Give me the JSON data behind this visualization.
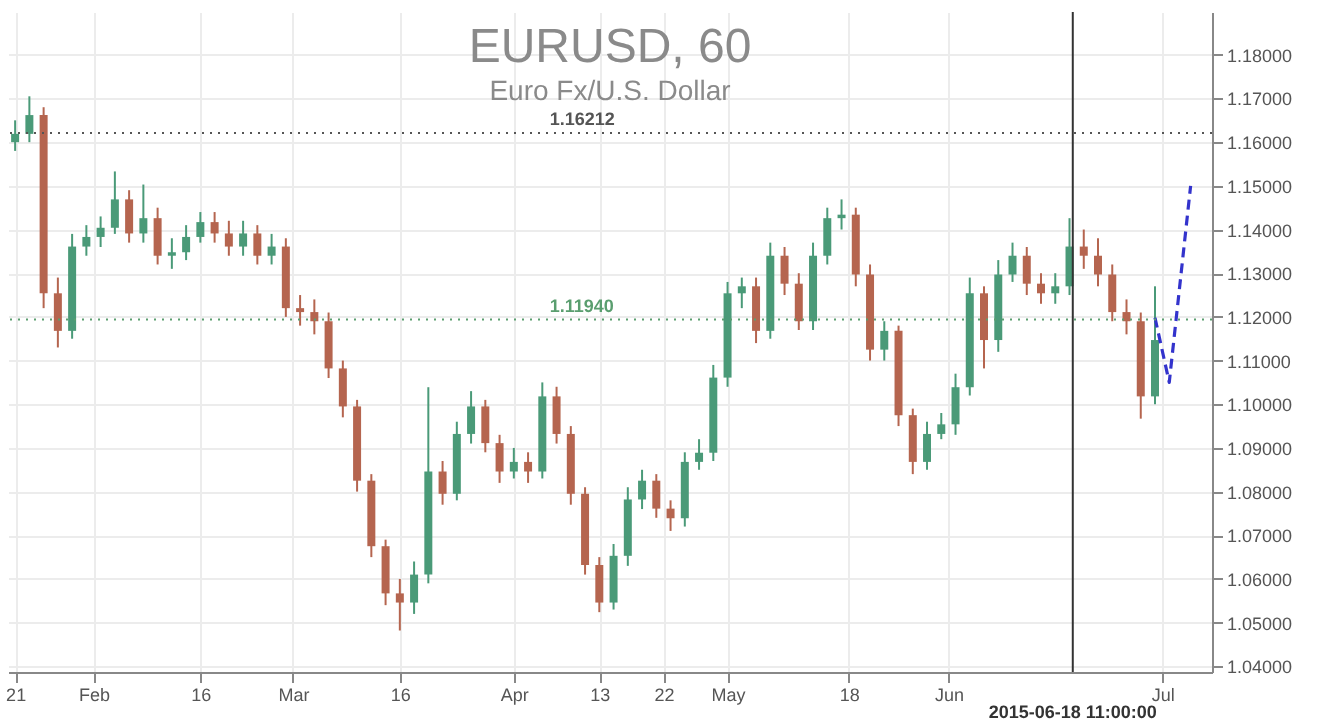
{
  "chart_data": {
    "type": "candlestick",
    "title": "EURUSD, 60",
    "subtitle": "Euro Fx/U.S. Dollar",
    "x": [
      "2015-01-21",
      "2015-01-23",
      "2015-01-25",
      "2015-01-27",
      "2015-01-29",
      "2015-01-31",
      "2015-02-02",
      "2015-02-04",
      "2015-02-06",
      "2015-02-08",
      "2015-02-10",
      "2015-02-12",
      "2015-02-14",
      "2015-02-16",
      "2015-02-18",
      "2015-02-20",
      "2015-02-22",
      "2015-02-24",
      "2015-02-26",
      "2015-02-28",
      "2015-03-02",
      "2015-03-04",
      "2015-03-06",
      "2015-03-08",
      "2015-03-10",
      "2015-03-12",
      "2015-03-14",
      "2015-03-16",
      "2015-03-18",
      "2015-03-20",
      "2015-03-22",
      "2015-03-24",
      "2015-03-26",
      "2015-03-28",
      "2015-03-30",
      "2015-04-01",
      "2015-04-03",
      "2015-04-05",
      "2015-04-07",
      "2015-04-09",
      "2015-04-11",
      "2015-04-13",
      "2015-04-15",
      "2015-04-17",
      "2015-04-19",
      "2015-04-21",
      "2015-04-23",
      "2015-04-25",
      "2015-04-27",
      "2015-04-29",
      "2015-05-01",
      "2015-05-03",
      "2015-05-05",
      "2015-05-07",
      "2015-05-09",
      "2015-05-11",
      "2015-05-13",
      "2015-05-15",
      "2015-05-17",
      "2015-05-19",
      "2015-05-21",
      "2015-05-23",
      "2015-05-25",
      "2015-05-27",
      "2015-05-29",
      "2015-05-31",
      "2015-06-02",
      "2015-06-04",
      "2015-06-06",
      "2015-06-08",
      "2015-06-10",
      "2015-06-12",
      "2015-06-14",
      "2015-06-16",
      "2015-06-18",
      "2015-06-20",
      "2015-06-22",
      "2015-06-24",
      "2015-06-26",
      "2015-06-28",
      "2015-06-30"
    ],
    "ohlc": [
      [
        1.16,
        1.165,
        1.158,
        1.1619
      ],
      [
        1.1619,
        1.1705,
        1.16,
        1.1662
      ],
      [
        1.1662,
        1.168,
        1.122,
        1.1254
      ],
      [
        1.1254,
        1.129,
        1.113,
        1.1168
      ],
      [
        1.1168,
        1.139,
        1.115,
        1.1361
      ],
      [
        1.1361,
        1.141,
        1.134,
        1.1383
      ],
      [
        1.1383,
        1.143,
        1.136,
        1.1404
      ],
      [
        1.1404,
        1.1533,
        1.139,
        1.1469
      ],
      [
        1.1469,
        1.149,
        1.137,
        1.1391
      ],
      [
        1.1391,
        1.1503,
        1.137,
        1.1426
      ],
      [
        1.1426,
        1.145,
        1.132,
        1.134
      ],
      [
        1.134,
        1.138,
        1.131,
        1.1348
      ],
      [
        1.1348,
        1.141,
        1.133,
        1.1383
      ],
      [
        1.1383,
        1.144,
        1.137,
        1.1417
      ],
      [
        1.1417,
        1.144,
        1.137,
        1.1391
      ],
      [
        1.1391,
        1.142,
        1.134,
        1.1361
      ],
      [
        1.1361,
        1.142,
        1.134,
        1.1391
      ],
      [
        1.1391,
        1.141,
        1.132,
        1.134
      ],
      [
        1.134,
        1.139,
        1.132,
        1.1361
      ],
      [
        1.1361,
        1.138,
        1.12,
        1.122
      ],
      [
        1.122,
        1.125,
        1.118,
        1.1211
      ],
      [
        1.1211,
        1.124,
        1.116,
        1.119
      ],
      [
        1.119,
        1.121,
        1.106,
        1.1082
      ],
      [
        1.1082,
        1.11,
        1.097,
        1.0995
      ],
      [
        1.0995,
        1.101,
        1.08,
        1.0825
      ],
      [
        1.0825,
        1.084,
        1.065,
        1.0675
      ],
      [
        1.0675,
        1.069,
        1.054,
        1.0567
      ],
      [
        1.0567,
        1.06,
        1.0482,
        1.0546
      ],
      [
        1.0546,
        1.064,
        1.052,
        1.061
      ],
      [
        1.061,
        1.1039,
        1.059,
        1.0846
      ],
      [
        1.0846,
        1.087,
        1.077,
        1.0795
      ],
      [
        1.0795,
        1.096,
        1.078,
        1.0932
      ],
      [
        1.0932,
        1.103,
        1.091,
        1.0995
      ],
      [
        1.0995,
        1.101,
        1.089,
        1.0911
      ],
      [
        1.0911,
        1.093,
        1.082,
        1.0846
      ],
      [
        1.0846,
        1.09,
        1.083,
        1.0868
      ],
      [
        1.0868,
        1.089,
        1.082,
        1.0846
      ],
      [
        1.0846,
        1.105,
        1.083,
        1.1018
      ],
      [
        1.1018,
        1.104,
        1.091,
        1.0932
      ],
      [
        1.0932,
        1.095,
        1.077,
        1.0795
      ],
      [
        1.0795,
        1.081,
        1.061,
        1.0632
      ],
      [
        1.0632,
        1.065,
        1.0524,
        1.0546
      ],
      [
        1.0546,
        1.068,
        1.053,
        1.0653
      ],
      [
        1.0653,
        1.081,
        1.063,
        1.0782
      ],
      [
        1.0782,
        1.085,
        1.076,
        1.0825
      ],
      [
        1.0825,
        1.084,
        1.074,
        1.0761
      ],
      [
        1.0761,
        1.078,
        1.071,
        1.0739
      ],
      [
        1.0739,
        1.089,
        1.072,
        1.0868
      ],
      [
        1.0868,
        1.092,
        1.085,
        1.0889
      ],
      [
        1.0889,
        1.109,
        1.087,
        1.1061
      ],
      [
        1.1061,
        1.128,
        1.104,
        1.1254
      ],
      [
        1.1254,
        1.129,
        1.122,
        1.127
      ],
      [
        1.127,
        1.129,
        1.114,
        1.1168
      ],
      [
        1.1168,
        1.137,
        1.115,
        1.134
      ],
      [
        1.134,
        1.136,
        1.125,
        1.1276
      ],
      [
        1.1276,
        1.13,
        1.117,
        1.119
      ],
      [
        1.119,
        1.137,
        1.117,
        1.134
      ],
      [
        1.134,
        1.145,
        1.132,
        1.1426
      ],
      [
        1.1426,
        1.1469,
        1.14,
        1.1434
      ],
      [
        1.1434,
        1.145,
        1.127,
        1.1297
      ],
      [
        1.1297,
        1.132,
        1.11,
        1.1125
      ],
      [
        1.1125,
        1.119,
        1.11,
        1.1168
      ],
      [
        1.1168,
        1.118,
        1.095,
        1.0975
      ],
      [
        1.0975,
        1.099,
        1.084,
        1.0868
      ],
      [
        1.0868,
        1.096,
        1.085,
        1.0932
      ],
      [
        1.0932,
        1.098,
        1.092,
        1.0954
      ],
      [
        1.0954,
        1.107,
        1.093,
        1.1039
      ],
      [
        1.1039,
        1.129,
        1.102,
        1.1254
      ],
      [
        1.1254,
        1.127,
        1.1082,
        1.1147
      ],
      [
        1.1147,
        1.133,
        1.112,
        1.1297
      ],
      [
        1.1297,
        1.137,
        1.128,
        1.134
      ],
      [
        1.134,
        1.136,
        1.125,
        1.1276
      ],
      [
        1.1276,
        1.13,
        1.123,
        1.1254
      ],
      [
        1.1254,
        1.13,
        1.123,
        1.127
      ],
      [
        1.127,
        1.1426,
        1.125,
        1.1361
      ],
      [
        1.1361,
        1.14,
        1.131,
        1.134
      ],
      [
        1.134,
        1.138,
        1.127,
        1.1297
      ],
      [
        1.1297,
        1.132,
        1.119,
        1.1211
      ],
      [
        1.1211,
        1.124,
        1.116,
        1.119
      ],
      [
        1.119,
        1.121,
        1.0967,
        1.1018
      ],
      [
        1.1018,
        1.127,
        1.1,
        1.1147
      ]
    ],
    "colors": [
      "#4a9a78",
      "#4a9a78",
      "#b5654f",
      "#b5654f",
      "#4a9a78",
      "#4a9a78",
      "#4a9a78",
      "#4a9a78",
      "#b5654f",
      "#4a9a78",
      "#b5654f",
      "#4a9a78",
      "#4a9a78",
      "#4a9a78",
      "#b5654f",
      "#b5654f",
      "#4a9a78",
      "#b5654f",
      "#4a9a78",
      "#b5654f",
      "#b5654f",
      "#b5654f",
      "#b5654f",
      "#b5654f",
      "#b5654f",
      "#b5654f",
      "#b5654f",
      "#b5654f",
      "#4a9a78",
      "#4a9a78",
      "#b5654f",
      "#4a9a78",
      "#4a9a78",
      "#b5654f",
      "#b5654f",
      "#4a9a78",
      "#b5654f",
      "#4a9a78",
      "#b5654f",
      "#b5654f",
      "#b5654f",
      "#b5654f",
      "#4a9a78",
      "#4a9a78",
      "#4a9a78",
      "#b5654f",
      "#b5654f",
      "#4a9a78",
      "#4a9a78",
      "#4a9a78",
      "#4a9a78",
      "#4a9a78",
      "#b5654f",
      "#4a9a78",
      "#b5654f",
      "#b5654f",
      "#4a9a78",
      "#4a9a78",
      "#4a9a78",
      "#b5654f",
      "#b5654f",
      "#4a9a78",
      "#b5654f",
      "#b5654f",
      "#4a9a78",
      "#4a9a78",
      "#4a9a78",
      "#4a9a78",
      "#b5654f",
      "#4a9a78",
      "#4a9a78",
      "#b5654f",
      "#b5654f",
      "#4a9a78",
      "#4a9a78",
      "#b5654f",
      "#b5654f",
      "#b5654f",
      "#b5654f",
      "#b5654f",
      "#4a9a78"
    ],
    "series": [
      {
        "type": "line",
        "x": [
          "2015-06-30",
          "2015-07-02",
          "2015-07-05"
        ],
        "values": [
          1.1198,
          1.105,
          1.15
        ],
        "color": "#3333cc",
        "line_style": "dashed",
        "marker": "none"
      }
    ],
    "xlim": [
      "2015-01-20",
      "2015-07-08"
    ],
    "xticks": [
      {
        "value": "2015-01-21",
        "label": "21"
      },
      {
        "value": "2015-02-01",
        "label": "Feb"
      },
      {
        "value": "2015-02-16",
        "label": "16"
      },
      {
        "value": "2015-03-01",
        "label": "Mar"
      },
      {
        "value": "2015-03-16",
        "label": "16"
      },
      {
        "value": "2015-04-01",
        "label": "Apr"
      },
      {
        "value": "2015-04-13",
        "label": "13"
      },
      {
        "value": "2015-04-22",
        "label": "22"
      },
      {
        "value": "2015-05-01",
        "label": "May"
      },
      {
        "value": "2015-05-18",
        "label": "18"
      },
      {
        "value": "2015-06-01",
        "label": "Jun"
      },
      {
        "value": "2015-07-01",
        "label": "Jul"
      }
    ],
    "ylim": [
      1.0387,
      1.1898
    ],
    "yticks": [
      {
        "value": 1.04,
        "label": "1.04000"
      },
      {
        "value": 1.05,
        "label": "1.05000"
      },
      {
        "value": 1.06,
        "label": "1.06000"
      },
      {
        "value": 1.07,
        "label": "1.07000"
      },
      {
        "value": 1.08,
        "label": "1.08000"
      },
      {
        "value": 1.09,
        "label": "1.09000"
      },
      {
        "value": 1.1,
        "label": "1.10000"
      },
      {
        "value": 1.11,
        "label": "1.11000"
      },
      {
        "value": 1.12,
        "label": "1.12000"
      },
      {
        "value": 1.13,
        "label": "1.13000"
      },
      {
        "value": 1.14,
        "label": "1.14000"
      },
      {
        "value": 1.15,
        "label": "1.15000"
      },
      {
        "value": 1.16,
        "label": "1.16000"
      },
      {
        "value": 1.17,
        "label": "1.17000"
      },
      {
        "value": 1.18,
        "label": "1.18000"
      }
    ],
    "ref_lines": [
      {
        "axis": "y",
        "value": 1.16212,
        "label": "1.16212",
        "color": "#555555",
        "line_style": "dotted"
      },
      {
        "axis": "y",
        "value": 1.1194,
        "label": "1.11940",
        "color": "#5a9e6f",
        "line_style": "dotted"
      },
      {
        "axis": "x",
        "value": "2015-06-18T11:00",
        "label": "2015-06-18 11:00:00",
        "color": "#333333",
        "line_style": "solid"
      }
    ],
    "grid": true
  }
}
